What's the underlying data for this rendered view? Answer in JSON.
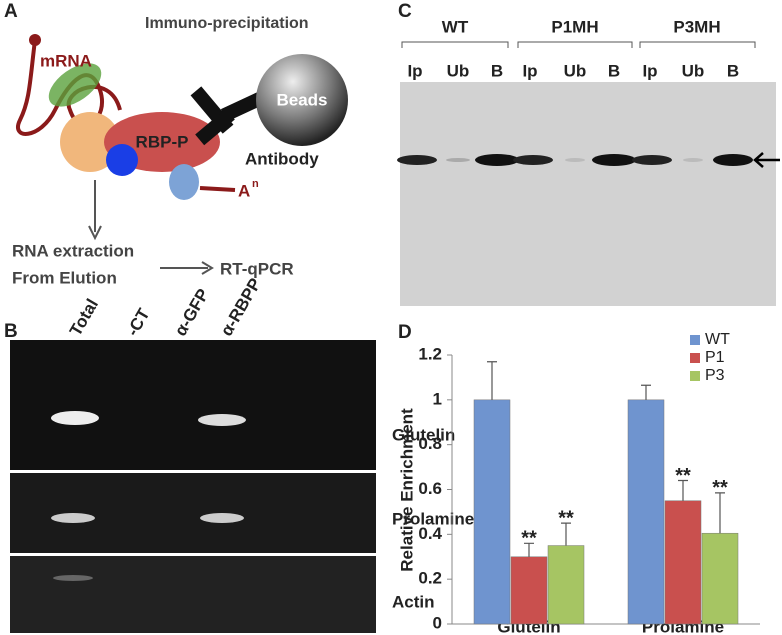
{
  "panel_a": {
    "label": "A",
    "title": "Immuno-precipitation",
    "mrna": "mRNA",
    "protein": "RBP-P",
    "beads": "Beads",
    "antibody": "Antibody",
    "polya": "A",
    "polya_sup": "n",
    "step1_line1": "RNA extraction",
    "step1_line2": "From Elution",
    "step2": "RT-qPCR"
  },
  "panel_b": {
    "label": "B",
    "lanes": [
      "Total",
      "-CT",
      "α-GFP",
      "α-RBPP"
    ],
    "rows": [
      "Glutelin",
      "Prolamine",
      "Actin"
    ]
  },
  "panel_c": {
    "label": "C",
    "groups": [
      {
        "name": "WT",
        "lanes": [
          "Ip",
          "Ub",
          "B"
        ]
      },
      {
        "name": "P1MH",
        "lanes": [
          "Ip",
          "Ub",
          "B"
        ]
      },
      {
        "name": "P3MH",
        "lanes": [
          "Ip",
          "Ub",
          "B"
        ]
      }
    ]
  },
  "panel_d_label": "D",
  "chart_data": {
    "type": "bar",
    "y_label": "Relative Enrichment",
    "categories": [
      "Glutelin",
      "Prolamine"
    ],
    "series": [
      {
        "name": "WT",
        "color": "#6f94cf",
        "values": [
          1,
          1
        ],
        "errors": [
          0.17,
          0.065
        ]
      },
      {
        "name": "P1",
        "color": "#c9504e",
        "values": [
          0.3,
          0.55
        ],
        "errors": [
          0.06,
          0.09
        ],
        "annotation": "**"
      },
      {
        "name": "P3",
        "color": "#a6c563",
        "values": [
          0.35,
          0.405
        ],
        "errors": [
          0.1,
          0.18
        ],
        "annotation": "**"
      }
    ],
    "ylim": [
      0,
      1.2
    ],
    "yticks": [
      0,
      0.2,
      0.4,
      0.6,
      0.8,
      1,
      1.2
    ],
    "legend": "top-right",
    "grid": false
  }
}
